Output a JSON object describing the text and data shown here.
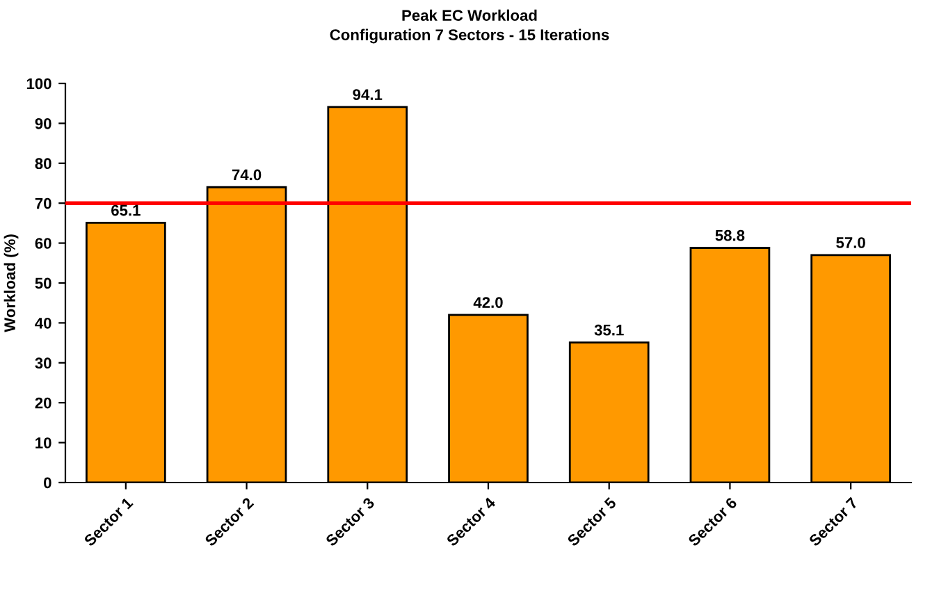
{
  "chart_data": {
    "type": "bar",
    "title": "Peak EC Workload",
    "subtitle": "Configuration 7 Sectors - 15 Iterations",
    "ylabel": "Workload (%)",
    "categories": [
      "Sector 1",
      "Sector 2",
      "Sector 3",
      "Sector 4",
      "Sector 5",
      "Sector 6",
      "Sector 7"
    ],
    "values": [
      65.1,
      74.0,
      94.1,
      42.0,
      35.1,
      58.8,
      57.0
    ],
    "value_labels": [
      "65.1",
      "74.0",
      "94.1",
      "42.0",
      "35.1",
      "58.8",
      "57.0"
    ],
    "color": "#ff9900",
    "ylim": [
      0,
      100
    ],
    "yticks": [
      0,
      10,
      20,
      30,
      40,
      50,
      60,
      70,
      80,
      90,
      100
    ],
    "ref_lines": [
      {
        "axis": "y",
        "value": 70,
        "color": "#ff0000",
        "line_style": "solid"
      }
    ],
    "grid": false,
    "legend": false
  }
}
